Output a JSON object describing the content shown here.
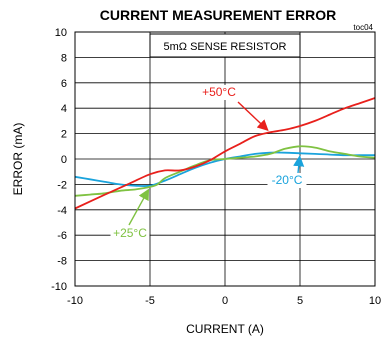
{
  "chart_data": {
    "type": "line",
    "title": "CURRENT MEASUREMENT ERROR",
    "note": "toc04",
    "xlabel": "CURRENT (A)",
    "ylabel": "ERROR (mA)",
    "xlim": [
      -10,
      10
    ],
    "ylim": [
      -10,
      10
    ],
    "xticks": [
      "-10",
      "-5",
      "0",
      "5",
      "10"
    ],
    "yticks": [
      "10",
      "8",
      "6",
      "4",
      "2",
      "0",
      "-2",
      "-4",
      "-6",
      "-8",
      "-10"
    ],
    "grid": true,
    "box_label": "5mΩ SENSE RESISTOR",
    "series": [
      {
        "name": "+50°C",
        "color": "#e8201c",
        "x": [
          -10,
          -8,
          -6.5,
          -5,
          -4,
          -3,
          -2,
          -1,
          0,
          1,
          2,
          3,
          4,
          5,
          6,
          7,
          8,
          9,
          10
        ],
        "y": [
          -3.9,
          -2.8,
          -2.0,
          -1.2,
          -0.9,
          -0.9,
          -0.6,
          -0.1,
          0.6,
          1.2,
          1.8,
          2.1,
          2.3,
          2.6,
          3.0,
          3.5,
          4.0,
          4.4,
          4.8
        ]
      },
      {
        "name": "-20°C",
        "color": "#1aa3dc",
        "x": [
          -10,
          -9,
          -8,
          -7,
          -6,
          -5,
          -4,
          -3,
          -2,
          -1,
          0,
          1,
          2,
          3,
          4,
          5,
          6,
          7,
          8,
          9,
          10
        ],
        "y": [
          -1.4,
          -1.6,
          -1.8,
          -2.0,
          -2.1,
          -2.1,
          -1.7,
          -1.2,
          -0.7,
          -0.3,
          0.0,
          0.2,
          0.4,
          0.5,
          0.5,
          0.45,
          0.4,
          0.35,
          0.3,
          0.3,
          0.3
        ]
      },
      {
        "name": "+25°C",
        "color": "#7fc242",
        "x": [
          -10,
          -9,
          -8,
          -7,
          -6,
          -5,
          -4.5,
          -4,
          -3,
          -2,
          -1,
          0,
          1,
          2,
          3,
          4,
          5,
          6,
          7,
          8,
          9,
          10
        ],
        "y": [
          -2.9,
          -2.8,
          -2.7,
          -2.5,
          -2.4,
          -2.2,
          -2.0,
          -1.5,
          -1.0,
          -0.5,
          -0.1,
          0.0,
          0.1,
          0.2,
          0.4,
          0.8,
          1.0,
          0.9,
          0.6,
          0.4,
          0.2,
          0.1
        ]
      }
    ],
    "annotations": [
      {
        "text": "+50°C",
        "color": "#e8201c",
        "series": 0,
        "point_x": 3.0
      },
      {
        "text": "-20°C",
        "color": "#1aa3dc",
        "series": 1,
        "point_x": 5.0
      },
      {
        "text": "+25°C",
        "color": "#7fc242",
        "series": 2,
        "point_x": -5.0
      }
    ]
  }
}
